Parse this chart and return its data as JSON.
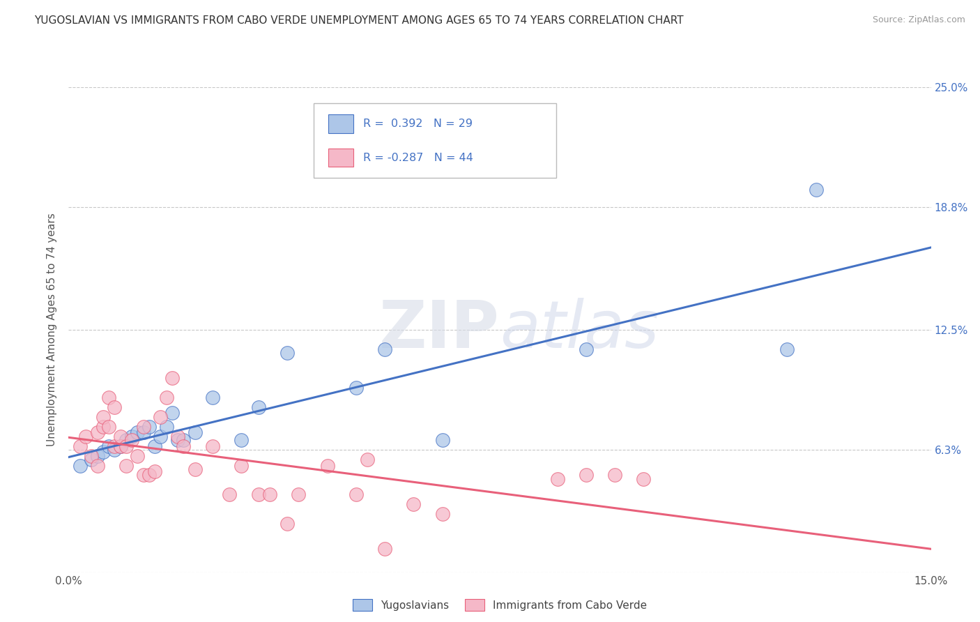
{
  "title": "YUGOSLAVIAN VS IMMIGRANTS FROM CABO VERDE UNEMPLOYMENT AMONG AGES 65 TO 74 YEARS CORRELATION CHART",
  "source": "Source: ZipAtlas.com",
  "ylabel": "Unemployment Among Ages 65 to 74 years",
  "xlim": [
    0.0,
    0.15
  ],
  "ylim": [
    0.0,
    0.25
  ],
  "ytick_right_labels": [
    "25.0%",
    "18.8%",
    "12.5%",
    "6.3%",
    ""
  ],
  "ytick_right_values": [
    0.25,
    0.188,
    0.125,
    0.063,
    0.0
  ],
  "grid_color": "#c8c8c8",
  "background_color": "#ffffff",
  "blue_fill_color": "#adc6e8",
  "pink_fill_color": "#f5b8c8",
  "blue_line_color": "#4472c4",
  "pink_line_color": "#e8607a",
  "R_blue": 0.392,
  "N_blue": 29,
  "R_pink": -0.287,
  "N_pink": 44,
  "legend_label_blue": "Yugoslavians",
  "legend_label_pink": "Immigrants from Cabo Verde",
  "blue_scatter_x": [
    0.002,
    0.004,
    0.005,
    0.006,
    0.007,
    0.008,
    0.009,
    0.01,
    0.011,
    0.012,
    0.013,
    0.014,
    0.015,
    0.016,
    0.017,
    0.018,
    0.019,
    0.02,
    0.022,
    0.025,
    0.03,
    0.033,
    0.038,
    0.05,
    0.055,
    0.065,
    0.09,
    0.125,
    0.13
  ],
  "blue_scatter_y": [
    0.055,
    0.058,
    0.06,
    0.062,
    0.065,
    0.063,
    0.065,
    0.068,
    0.07,
    0.072,
    0.072,
    0.075,
    0.065,
    0.07,
    0.075,
    0.082,
    0.068,
    0.068,
    0.072,
    0.09,
    0.068,
    0.085,
    0.113,
    0.095,
    0.115,
    0.068,
    0.115,
    0.115,
    0.197
  ],
  "pink_scatter_x": [
    0.002,
    0.003,
    0.004,
    0.005,
    0.005,
    0.006,
    0.006,
    0.007,
    0.007,
    0.008,
    0.008,
    0.009,
    0.009,
    0.01,
    0.01,
    0.011,
    0.012,
    0.013,
    0.013,
    0.014,
    0.015,
    0.016,
    0.017,
    0.018,
    0.019,
    0.02,
    0.022,
    0.025,
    0.028,
    0.03,
    0.033,
    0.035,
    0.038,
    0.04,
    0.045,
    0.05,
    0.052,
    0.055,
    0.06,
    0.065,
    0.085,
    0.09,
    0.095,
    0.1
  ],
  "pink_scatter_y": [
    0.065,
    0.07,
    0.06,
    0.072,
    0.055,
    0.075,
    0.08,
    0.09,
    0.075,
    0.085,
    0.065,
    0.065,
    0.07,
    0.065,
    0.055,
    0.068,
    0.06,
    0.075,
    0.05,
    0.05,
    0.052,
    0.08,
    0.09,
    0.1,
    0.07,
    0.065,
    0.053,
    0.065,
    0.04,
    0.055,
    0.04,
    0.04,
    0.025,
    0.04,
    0.055,
    0.04,
    0.058,
    0.012,
    0.035,
    0.03,
    0.048,
    0.05,
    0.05,
    0.048
  ]
}
